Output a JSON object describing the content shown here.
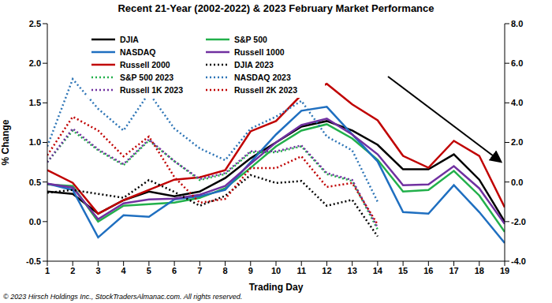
{
  "chart_data": {
    "type": "line",
    "title": "Recent 21-Year (2002-2022) & 2023 February Market Performance",
    "x_label": "Trading Day",
    "y_label": "% Change",
    "annotation": "© 2023 Hirsch Holdings Inc., StockTradersAlmanac.com. All rights reserved.",
    "x": [
      1,
      2,
      3,
      4,
      5,
      6,
      7,
      8,
      9,
      10,
      11,
      12,
      13,
      14,
      15,
      16,
      17,
      18,
      19
    ],
    "xlim": [
      1,
      19
    ],
    "xticks": [
      1,
      2,
      3,
      4,
      5,
      6,
      7,
      8,
      9,
      10,
      11,
      12,
      13,
      14,
      15,
      16,
      17,
      18,
      19
    ],
    "ylim": [
      -0.5,
      2.5
    ],
    "yticks": [
      -0.5,
      {
        "value": 0,
        "label": "0.0"
      },
      0.5,
      {
        "value": 1,
        "label": "1.0"
      },
      1.5,
      {
        "value": 2,
        "label": "2.0"
      },
      2.5
    ],
    "y2lim": [
      -4,
      8
    ],
    "y2ticks": [
      {
        "value": -4,
        "label": "-4.0"
      },
      {
        "value": -2,
        "label": "-2.0"
      },
      {
        "value": 0,
        "label": "0.0"
      },
      {
        "value": 2,
        "label": "2.0"
      },
      {
        "value": 4,
        "label": "4.0"
      },
      {
        "value": 6,
        "label": "6.0"
      },
      {
        "value": 8,
        "label": "8.0"
      }
    ],
    "grid": false,
    "legend": "upper left",
    "series": [
      {
        "name": "DJIA",
        "color": "#000000",
        "line_style": "solid",
        "values": [
          0.38,
          0.35,
          0.1,
          0.27,
          0.38,
          0.32,
          0.38,
          0.55,
          0.8,
          1.0,
          1.2,
          1.27,
          1.15,
          0.97,
          0.66,
          0.66,
          0.85,
          0.53,
          0.0
        ]
      },
      {
        "name": "S&P 500",
        "color": "#22b04b",
        "line_style": "solid",
        "values": [
          0.47,
          0.45,
          0.0,
          0.2,
          0.22,
          0.24,
          0.3,
          0.42,
          0.68,
          0.95,
          1.15,
          1.23,
          1.05,
          0.78,
          0.38,
          0.4,
          0.64,
          0.33,
          -0.13
        ]
      },
      {
        "name": "NASDAQ",
        "color": "#1f6fc0",
        "line_style": "solid",
        "values": [
          0.48,
          0.4,
          -0.2,
          0.08,
          0.06,
          0.28,
          0.32,
          0.4,
          0.75,
          1.1,
          1.4,
          1.45,
          1.1,
          0.76,
          0.12,
          0.1,
          0.46,
          0.12,
          -0.27
        ]
      },
      {
        "name": "Russell 1000",
        "color": "#7030a0",
        "line_style": "solid",
        "values": [
          0.48,
          0.43,
          0.03,
          0.23,
          0.28,
          0.29,
          0.34,
          0.45,
          0.73,
          1.0,
          1.22,
          1.3,
          1.1,
          0.85,
          0.46,
          0.47,
          0.7,
          0.42,
          -0.03
        ]
      },
      {
        "name": "Russell 2000",
        "color": "#c00000",
        "line_style": "solid",
        "values": [
          0.65,
          0.49,
          0.1,
          0.27,
          0.4,
          0.53,
          0.56,
          0.65,
          1.14,
          1.27,
          1.6,
          1.74,
          1.48,
          1.28,
          0.83,
          0.68,
          1.02,
          0.83,
          0.18
        ]
      },
      {
        "name": "DJIA 2023",
        "color": "#000000",
        "line_style": "dotted",
        "axis": "y2",
        "values": [
          -0.54,
          -0.4,
          -0.6,
          -0.8,
          0.1,
          -0.5,
          -1.2,
          -0.7,
          0.35,
          -0.05,
          0.05,
          -1.2,
          -0.9,
          -2.75,
          null,
          null,
          null,
          null,
          null
        ]
      },
      {
        "name": "S&P 500 2023",
        "color": "#22b04b",
        "line_style": "dotted",
        "axis": "y2",
        "values": [
          1.0,
          2.6,
          1.6,
          0.85,
          2.1,
          1.05,
          0.1,
          0.4,
          1.5,
          1.5,
          1.8,
          0.4,
          0.05,
          -2.4,
          null,
          null,
          null,
          null,
          null
        ]
      },
      {
        "name": "NASDAQ 2023",
        "color": "#2e75b6",
        "line_style": "dotted",
        "axis": "y2",
        "values": [
          1.8,
          5.2,
          3.7,
          2.6,
          4.5,
          2.7,
          1.7,
          1.1,
          2.7,
          3.3,
          4.1,
          2.3,
          1.6,
          -1.0,
          null,
          null,
          null,
          null,
          null
        ]
      },
      {
        "name": "Russell 1K 2023",
        "color": "#7030a0",
        "line_style": "dotted",
        "axis": "y2",
        "values": [
          1.0,
          2.7,
          1.65,
          0.9,
          2.15,
          1.05,
          0.15,
          0.45,
          1.55,
          1.55,
          1.85,
          0.45,
          0.1,
          -2.3,
          null,
          null,
          null,
          null,
          null
        ]
      },
      {
        "name": "Russell 2K 2023",
        "color": "#c00000",
        "line_style": "dotted",
        "axis": "y2",
        "values": [
          1.35,
          3.3,
          2.6,
          1.3,
          2.3,
          0.25,
          -1.05,
          -0.85,
          0.7,
          0.7,
          1.3,
          -0.25,
          -0.05,
          -2.15,
          null,
          null,
          null,
          null,
          null
        ]
      }
    ]
  }
}
